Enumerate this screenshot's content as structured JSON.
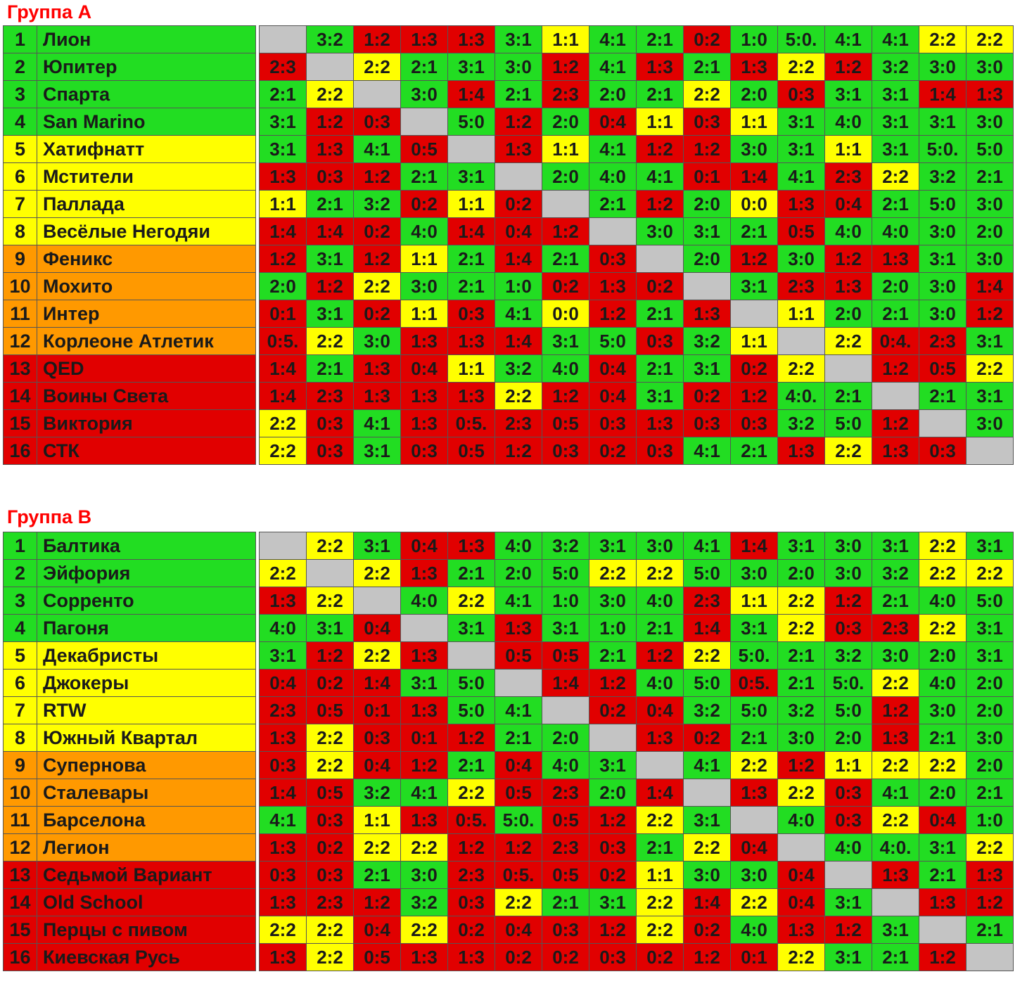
{
  "colors": {
    "win": "#22dd22",
    "draw": "#ffff00",
    "loss": "#e10000",
    "self": "#c4c4c4",
    "zone_orange": "#ff9900"
  },
  "groups": [
    {
      "title": "Группа А",
      "teams": [
        {
          "num": "1",
          "name": "Лион",
          "zone": "green"
        },
        {
          "num": "2",
          "name": "Юпитер",
          "zone": "green"
        },
        {
          "num": "3",
          "name": "Спарта",
          "zone": "green"
        },
        {
          "num": "4",
          "name": "San Marino",
          "zone": "green"
        },
        {
          "num": "5",
          "name": "Хатифнатт",
          "zone": "yellow"
        },
        {
          "num": "6",
          "name": "Мстители",
          "zone": "yellow"
        },
        {
          "num": "7",
          "name": "Паллада",
          "zone": "yellow"
        },
        {
          "num": "8",
          "name": "Весёлые Негодяи",
          "zone": "yellow"
        },
        {
          "num": "9",
          "name": "Феникс",
          "zone": "orange"
        },
        {
          "num": "10",
          "name": "Мохито",
          "zone": "orange"
        },
        {
          "num": "11",
          "name": "Интер",
          "zone": "orange"
        },
        {
          "num": "12",
          "name": "Корлеоне Атлетик",
          "zone": "orange"
        },
        {
          "num": "13",
          "name": "QED",
          "zone": "red"
        },
        {
          "num": "14",
          "name": "Воины Света",
          "zone": "red"
        },
        {
          "num": "15",
          "name": "Виктория",
          "zone": "red"
        },
        {
          "num": "16",
          "name": "СТК",
          "zone": "red"
        }
      ],
      "results": [
        [
          "",
          "3:2",
          "1:2",
          "1:3",
          "1:3",
          "3:1",
          "1:1",
          "4:1",
          "2:1",
          "0:2",
          "1:0",
          "5:0.",
          "4:1",
          "4:1",
          "2:2",
          "2:2"
        ],
        [
          "2:3",
          "",
          "2:2",
          "2:1",
          "3:1",
          "3:0",
          "1:2",
          "4:1",
          "1:3",
          "2:1",
          "1:3",
          "2:2",
          "1:2",
          "3:2",
          "3:0",
          "3:0"
        ],
        [
          "2:1",
          "2:2",
          "",
          "3:0",
          "1:4",
          "2:1",
          "2:3",
          "2:0",
          "2:1",
          "2:2",
          "2:0",
          "0:3",
          "3:1",
          "3:1",
          "1:4",
          "1:3"
        ],
        [
          "3:1",
          "1:2",
          "0:3",
          "",
          "5:0",
          "1:2",
          "2:0",
          "0:4",
          "1:1",
          "0:3",
          "1:1",
          "3:1",
          "4:0",
          "3:1",
          "3:1",
          "3:0"
        ],
        [
          "3:1",
          "1:3",
          "4:1",
          "0:5",
          "",
          "1:3",
          "1:1",
          "4:1",
          "1:2",
          "1:2",
          "3:0",
          "3:1",
          "1:1",
          "3:1",
          "5:0.",
          "5:0"
        ],
        [
          "1:3",
          "0:3",
          "1:2",
          "2:1",
          "3:1",
          "",
          "2:0",
          "4:0",
          "4:1",
          "0:1",
          "1:4",
          "4:1",
          "2:3",
          "2:2",
          "3:2",
          "2:1"
        ],
        [
          "1:1",
          "2:1",
          "3:2",
          "0:2",
          "1:1",
          "0:2",
          "",
          "2:1",
          "1:2",
          "2:0",
          "0:0",
          "1:3",
          "0:4",
          "2:1",
          "5:0",
          "3:0"
        ],
        [
          "1:4",
          "1:4",
          "0:2",
          "4:0",
          "1:4",
          "0:4",
          "1:2",
          "",
          "3:0",
          "3:1",
          "2:1",
          "0:5",
          "4:0",
          "4:0",
          "3:0",
          "2:0"
        ],
        [
          "1:2",
          "3:1",
          "1:2",
          "1:1",
          "2:1",
          "1:4",
          "2:1",
          "0:3",
          "",
          "2:0",
          "1:2",
          "3:0",
          "1:2",
          "1:3",
          "3:1",
          "3:0"
        ],
        [
          "2:0",
          "1:2",
          "2:2",
          "3:0",
          "2:1",
          "1:0",
          "0:2",
          "1:3",
          "0:2",
          "",
          "3:1",
          "2:3",
          "1:3",
          "2:0",
          "3:0",
          "1:4"
        ],
        [
          "0:1",
          "3:1",
          "0:2",
          "1:1",
          "0:3",
          "4:1",
          "0:0",
          "1:2",
          "2:1",
          "1:3",
          "",
          "1:1",
          "2:0",
          "2:1",
          "3:0",
          "1:2"
        ],
        [
          "0:5.",
          "2:2",
          "3:0",
          "1:3",
          "1:3",
          "1:4",
          "3:1",
          "5:0",
          "0:3",
          "3:2",
          "1:1",
          "",
          "2:2",
          "0:4.",
          "2:3",
          "3:1"
        ],
        [
          "1:4",
          "2:1",
          "1:3",
          "0:4",
          "1:1",
          "3:2",
          "4:0",
          "0:4",
          "2:1",
          "3:1",
          "0:2",
          "2:2",
          "",
          "1:2",
          "0:5",
          "2:2"
        ],
        [
          "1:4",
          "2:3",
          "1:3",
          "1:3",
          "1:3",
          "2:2",
          "1:2",
          "0:4",
          "3:1",
          "0:2",
          "1:2",
          "4:0.",
          "2:1",
          "",
          "2:1",
          "3:1"
        ],
        [
          "2:2",
          "0:3",
          "4:1",
          "1:3",
          "0:5.",
          "2:3",
          "0:5",
          "0:3",
          "1:3",
          "0:3",
          "0:3",
          "3:2",
          "5:0",
          "1:2",
          "",
          "3:0"
        ],
        [
          "2:2",
          "0:3",
          "3:1",
          "0:3",
          "0:5",
          "1:2",
          "0:3",
          "0:2",
          "0:3",
          "4:1",
          "2:1",
          "1:3",
          "2:2",
          "1:3",
          "0:3",
          ""
        ]
      ]
    },
    {
      "title": "Группа В",
      "teams": [
        {
          "num": "1",
          "name": "Балтика",
          "zone": "green"
        },
        {
          "num": "2",
          "name": "Эйфория",
          "zone": "green"
        },
        {
          "num": "3",
          "name": "Сорренто",
          "zone": "green"
        },
        {
          "num": "4",
          "name": "Пагоня",
          "zone": "green"
        },
        {
          "num": "5",
          "name": "Декабристы",
          "zone": "yellow"
        },
        {
          "num": "6",
          "name": "Джокеры",
          "zone": "yellow"
        },
        {
          "num": "7",
          "name": "RTW",
          "zone": "yellow"
        },
        {
          "num": "8",
          "name": "Южный Квартал",
          "zone": "yellow"
        },
        {
          "num": "9",
          "name": "Супернова",
          "zone": "orange"
        },
        {
          "num": "10",
          "name": "Сталевары",
          "zone": "orange"
        },
        {
          "num": "11",
          "name": "Барселона",
          "zone": "orange"
        },
        {
          "num": "12",
          "name": "Легион",
          "zone": "orange"
        },
        {
          "num": "13",
          "name": "Седьмой Вариант",
          "zone": "red"
        },
        {
          "num": "14",
          "name": "Old School",
          "zone": "red"
        },
        {
          "num": "15",
          "name": "Перцы с пивом",
          "zone": "red"
        },
        {
          "num": "16",
          "name": "Киевская Русь",
          "zone": "red"
        }
      ],
      "results": [
        [
          "",
          "2:2",
          "3:1",
          "0:4",
          "1:3",
          "4:0",
          "3:2",
          "3:1",
          "3:0",
          "4:1",
          "1:4",
          "3:1",
          "3:0",
          "3:1",
          "2:2",
          "3:1"
        ],
        [
          "2:2",
          "",
          "2:2",
          "1:3",
          "2:1",
          "2:0",
          "5:0",
          "2:2",
          "2:2",
          "5:0",
          "3:0",
          "2:0",
          "3:0",
          "3:2",
          "2:2",
          "2:2"
        ],
        [
          "1:3",
          "2:2",
          "",
          "4:0",
          "2:2",
          "4:1",
          "1:0",
          "3:0",
          "4:0",
          "2:3",
          "1:1",
          "2:2",
          "1:2",
          "2:1",
          "4:0",
          "5:0"
        ],
        [
          "4:0",
          "3:1",
          "0:4",
          "",
          "3:1",
          "1:3",
          "3:1",
          "1:0",
          "2:1",
          "1:4",
          "3:1",
          "2:2",
          "0:3",
          "2:3",
          "2:2",
          "3:1"
        ],
        [
          "3:1",
          "1:2",
          "2:2",
          "1:3",
          "",
          "0:5",
          "0:5",
          "2:1",
          "1:2",
          "2:2",
          "5:0.",
          "2:1",
          "3:2",
          "3:0",
          "2:0",
          "3:1"
        ],
        [
          "0:4",
          "0:2",
          "1:4",
          "3:1",
          "5:0",
          "",
          "1:4",
          "1:2",
          "4:0",
          "5:0",
          "0:5.",
          "2:1",
          "5:0.",
          "2:2",
          "4:0",
          "2:0"
        ],
        [
          "2:3",
          "0:5",
          "0:1",
          "1:3",
          "5:0",
          "4:1",
          "",
          "0:2",
          "0:4",
          "3:2",
          "5:0",
          "3:2",
          "5:0",
          "1:2",
          "3:0",
          "2:0"
        ],
        [
          "1:3",
          "2:2",
          "0:3",
          "0:1",
          "1:2",
          "2:1",
          "2:0",
          "",
          "1:3",
          "0:2",
          "2:1",
          "3:0",
          "2:0",
          "1:3",
          "2:1",
          "3:0"
        ],
        [
          "0:3",
          "2:2",
          "0:4",
          "1:2",
          "2:1",
          "0:4",
          "4:0",
          "3:1",
          "",
          "4:1",
          "2:2",
          "1:2",
          "1:1",
          "2:2",
          "2:2",
          "2:0"
        ],
        [
          "1:4",
          "0:5",
          "3:2",
          "4:1",
          "2:2",
          "0:5",
          "2:3",
          "2:0",
          "1:4",
          "",
          "1:3",
          "2:2",
          "0:3",
          "4:1",
          "2:0",
          "2:1"
        ],
        [
          "4:1",
          "0:3",
          "1:1",
          "1:3",
          "0:5.",
          "5:0.",
          "0:5",
          "1:2",
          "2:2",
          "3:1",
          "",
          "4:0",
          "0:3",
          "2:2",
          "0:4",
          "1:0"
        ],
        [
          "1:3",
          "0:2",
          "2:2",
          "2:2",
          "1:2",
          "1:2",
          "2:3",
          "0:3",
          "2:1",
          "2:2",
          "0:4",
          "",
          "4:0",
          "4:0.",
          "3:1",
          "2:2"
        ],
        [
          "0:3",
          "0:3",
          "2:1",
          "3:0",
          "2:3",
          "0:5.",
          "0:5",
          "0:2",
          "1:1",
          "3:0",
          "3:0",
          "0:4",
          "",
          "1:3",
          "2:1",
          "1:3"
        ],
        [
          "1:3",
          "2:3",
          "1:2",
          "3:2",
          "0:3",
          "2:2",
          "2:1",
          "3:1",
          "2:2",
          "1:4",
          "2:2",
          "0:4",
          "3:1",
          "",
          "1:3",
          "1:2"
        ],
        [
          "2:2",
          "2:2",
          "0:4",
          "2:2",
          "0:2",
          "0:4",
          "0:3",
          "1:2",
          "2:2",
          "0:2",
          "4:0",
          "1:3",
          "1:2",
          "3:1",
          "",
          "2:1"
        ],
        [
          "1:3",
          "2:2",
          "0:5",
          "1:3",
          "1:3",
          "0:2",
          "0:2",
          "0:3",
          "0:2",
          "1:2",
          "0:1",
          "2:2",
          "3:1",
          "2:1",
          "1:2",
          ""
        ]
      ]
    }
  ]
}
